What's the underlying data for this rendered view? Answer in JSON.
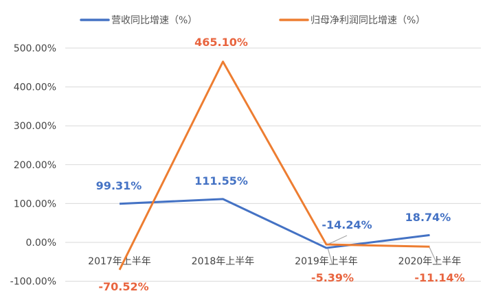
{
  "chart_data": {
    "type": "line",
    "title": "",
    "xlabel": "",
    "ylabel": "",
    "categories": [
      "2017年上半年",
      "2018年上半年",
      "2019年上半年",
      "2020年上半年"
    ],
    "ylim": [
      -100,
      500
    ],
    "yticks": [
      -100,
      0,
      100,
      200,
      300,
      400,
      500
    ],
    "ytick_labels": [
      "-100.00%",
      "0.00%",
      "100.00%",
      "200.00%",
      "300.00%",
      "400.00%",
      "500.00%"
    ],
    "grid": true,
    "legend_position": "top",
    "series": [
      {
        "name": "营收同比增速（%）",
        "color": "#4472C4",
        "label_color": "#4472C4",
        "values": [
          99.31,
          111.55,
          -14.24,
          18.74
        ],
        "labels": [
          "99.31%",
          "111.55%",
          "-14.24%",
          "18.74%"
        ]
      },
      {
        "name": "归母净利润同比增速（%）",
        "color": "#ED7D31",
        "label_color": "#E8643E",
        "values": [
          -70.52,
          465.1,
          -5.39,
          -11.14
        ],
        "labels": [
          "-70.52%",
          "465.10%",
          "-5.39%",
          "-11.14%"
        ]
      }
    ]
  }
}
